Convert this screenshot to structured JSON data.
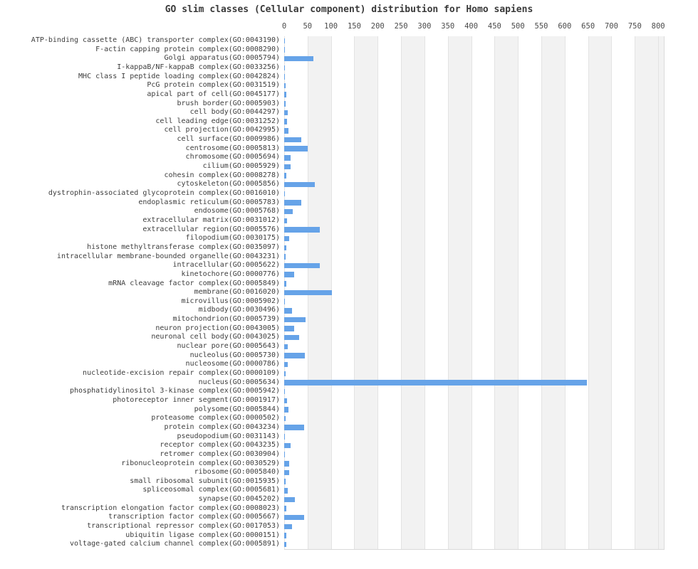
{
  "chart_data": {
    "type": "bar",
    "orientation": "horizontal",
    "title": "GO slim classes (Cellular component) distribution for Homo sapiens",
    "xlabel": "",
    "ylabel": "",
    "x_ticks": [
      0,
      50,
      100,
      150,
      200,
      250,
      300,
      350,
      400,
      450,
      500,
      550,
      600,
      650,
      700,
      750,
      800
    ],
    "xlim": [
      0,
      812
    ],
    "legend": "none",
    "grid": "alternating vertical bands every 50 units with light gridlines at each tick",
    "bar_color": "#66a3e8",
    "band_color": "#f2f2f2",
    "gridline_color": "#e3e3e3",
    "text_color": "#3d3d3d",
    "categories": [
      "ATP-binding cassette (ABC) transporter complex(GO:0043190)",
      "F-actin capping protein complex(GO:0008290)",
      "Golgi apparatus(GO:0005794)",
      "I-kappaB/NF-kappaB complex(GO:0033256)",
      "MHC class I peptide loading complex(GO:0042824)",
      "PcG protein complex(GO:0031519)",
      "apical part of cell(GO:0045177)",
      "brush border(GO:0005903)",
      "cell body(GO:0044297)",
      "cell leading edge(GO:0031252)",
      "cell projection(GO:0042995)",
      "cell surface(GO:0009986)",
      "centrosome(GO:0005813)",
      "chromosome(GO:0005694)",
      "cilium(GO:0005929)",
      "cohesin complex(GO:0008278)",
      "cytoskeleton(GO:0005856)",
      "dystrophin-associated glycoprotein complex(GO:0016010)",
      "endoplasmic reticulum(GO:0005783)",
      "endosome(GO:0005768)",
      "extracellular matrix(GO:0031012)",
      "extracellular region(GO:0005576)",
      "filopodium(GO:0030175)",
      "histone methyltransferase complex(GO:0035097)",
      "intracellular membrane-bounded organelle(GO:0043231)",
      "intracellular(GO:0005622)",
      "kinetochore(GO:0000776)",
      "mRNA cleavage factor complex(GO:0005849)",
      "membrane(GO:0016020)",
      "microvillus(GO:0005902)",
      "midbody(GO:0030496)",
      "mitochondrion(GO:0005739)",
      "neuron projection(GO:0043005)",
      "neuronal cell body(GO:0043025)",
      "nuclear pore(GO:0005643)",
      "nucleolus(GO:0005730)",
      "nucleosome(GO:0000786)",
      "nucleotide-excision repair complex(GO:0000109)",
      "nucleus(GO:0005634)",
      "phosphatidylinositol 3-kinase complex(GO:0005942)",
      "photoreceptor inner segment(GO:0001917)",
      "polysome(GO:0005844)",
      "proteasome complex(GO:0000502)",
      "protein complex(GO:0043234)",
      "pseudopodium(GO:0031143)",
      "receptor complex(GO:0043235)",
      "retromer complex(GO:0030904)",
      "ribonucleoprotein complex(GO:0030529)",
      "ribosome(GO:0005840)",
      "small ribosomal subunit(GO:0015935)",
      "spliceosomal complex(GO:0005681)",
      "synapse(GO:0045202)",
      "transcription elongation factor complex(GO:0008023)",
      "transcription factor complex(GO:0005667)",
      "transcriptional repressor complex(GO:0017053)",
      "ubiquitin ligase complex(GO:0000151)",
      "voltage-gated calcium channel complex(GO:0005891)"
    ],
    "values": [
      2,
      2,
      63,
      2,
      2,
      3,
      5,
      3,
      8,
      6,
      9,
      37,
      51,
      13,
      14,
      4,
      66,
      2,
      36,
      19,
      6,
      76,
      10,
      4,
      3,
      76,
      21,
      4,
      102,
      2,
      16,
      45,
      22,
      32,
      8,
      44,
      7,
      3,
      647,
      2,
      6,
      9,
      3,
      43,
      2,
      13,
      2,
      11,
      10,
      3,
      8,
      23,
      4,
      42,
      16,
      5,
      5
    ]
  }
}
